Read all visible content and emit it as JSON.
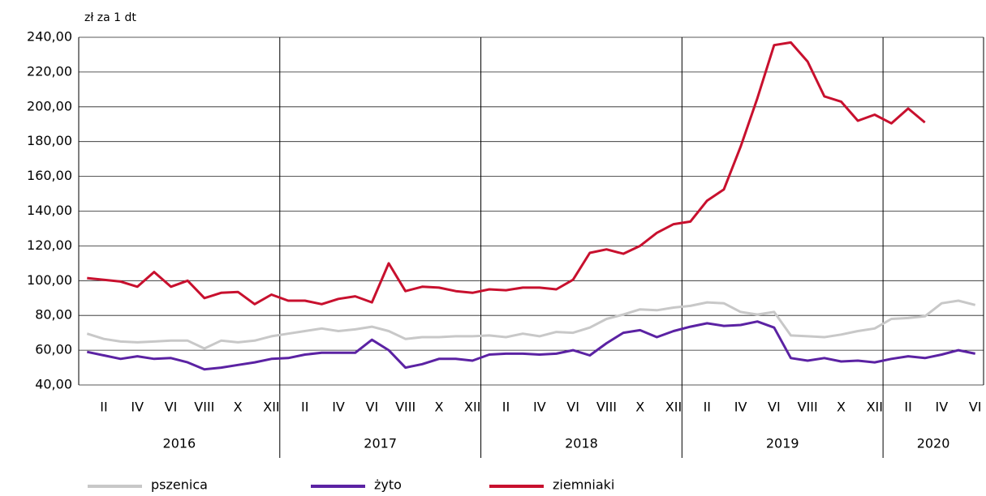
{
  "chart_data": {
    "type": "line",
    "y_axis_label": "zł za 1 dt",
    "categories": [
      null,
      "II",
      null,
      "IV",
      null,
      "VI",
      null,
      "VIII",
      null,
      "X",
      null,
      "XII",
      null,
      "II",
      null,
      "IV",
      null,
      "VI",
      null,
      "VIII",
      null,
      "X",
      null,
      "XII",
      null,
      "II",
      null,
      "IV",
      null,
      "VI",
      null,
      "VIII",
      null,
      "X",
      null,
      "XII",
      null,
      "II",
      null,
      "IV",
      null,
      "VI",
      null,
      "VIII",
      null,
      "X",
      null,
      "XII",
      null,
      "II",
      null,
      "IV",
      null,
      "VI"
    ],
    "years": [
      "2016",
      "2017",
      "2018",
      "2019",
      "2020"
    ],
    "series": [
      {
        "name": "pszenica",
        "color": "#c8c8c8",
        "values": [
          69.5,
          66.5,
          65,
          64.5,
          65,
          65.5,
          65.5,
          61,
          65.5,
          64.5,
          65.5,
          68,
          69.5,
          71,
          72.5,
          71,
          72,
          73.5,
          71,
          66.5,
          67.5,
          67.5,
          68,
          68,
          68.5,
          67.5,
          69.5,
          68,
          70.5,
          70,
          73,
          78,
          80.5,
          83.5,
          83,
          84.5,
          85.5,
          87.5,
          87,
          82,
          80.5,
          82,
          68.5,
          68,
          67.5,
          69,
          71,
          72.5,
          78,
          78.5,
          79.5,
          87,
          88.5,
          86
        ]
      },
      {
        "name": "żyto",
        "color": "#5b22a3",
        "values": [
          59,
          57,
          55,
          56.5,
          55,
          55.5,
          53,
          49,
          50,
          51.5,
          53,
          55,
          55.5,
          57.5,
          58.5,
          58.5,
          58.5,
          66,
          60,
          50,
          52,
          55,
          55,
          54,
          57.5,
          58,
          58,
          57.5,
          58,
          60,
          57,
          64,
          70,
          71.5,
          67.5,
          71,
          73.5,
          75.5,
          74,
          74.5,
          76.5,
          73,
          55.5,
          54,
          55.5,
          53.5,
          54,
          53,
          55,
          56.5,
          55.5,
          57.5,
          60,
          58
        ]
      },
      {
        "name": "ziemniaki",
        "color": "#c8102e",
        "values": [
          101.5,
          100.5,
          99.5,
          96.5,
          105,
          96.5,
          100,
          90,
          93,
          93.5,
          86.5,
          92,
          88.5,
          88.5,
          86.5,
          89.5,
          91,
          87.5,
          110,
          94,
          96.5,
          96,
          94,
          93,
          95,
          94.5,
          96,
          96,
          95,
          100.5,
          116,
          118,
          115.5,
          120,
          127.5,
          132.5,
          134,
          146,
          152.5,
          177,
          205,
          235.5,
          237,
          226,
          206,
          203,
          192,
          195.5,
          190.5,
          199,
          191,
          null,
          null,
          null
        ]
      }
    ],
    "ylim": [
      40,
      240
    ],
    "yticks": [
      {
        "value": 40,
        "label": "40,00"
      },
      {
        "value": 60,
        "label": "60,00"
      },
      {
        "value": 80,
        "label": "80,00"
      },
      {
        "value": 100,
        "label": "100,00"
      },
      {
        "value": 120,
        "label": "120,00"
      },
      {
        "value": 140,
        "label": "140,00"
      },
      {
        "value": 160,
        "label": "160,00"
      },
      {
        "value": 180,
        "label": "180,00"
      },
      {
        "value": 200,
        "label": "200,00"
      },
      {
        "value": 220,
        "label": "220,00"
      },
      {
        "value": 240,
        "label": "240,00"
      }
    ],
    "grid": true
  }
}
